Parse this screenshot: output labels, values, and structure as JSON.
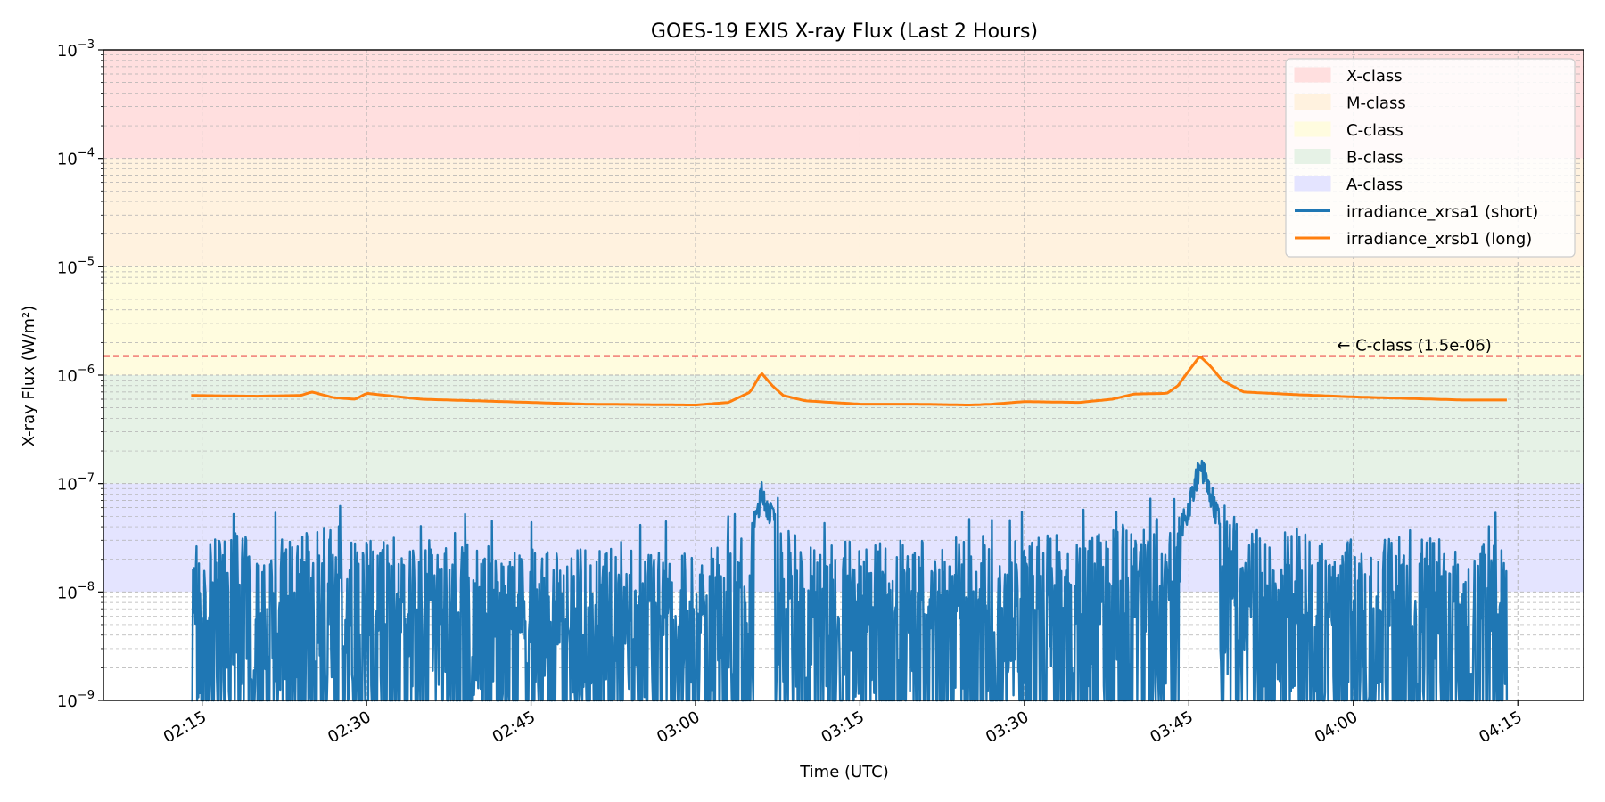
{
  "chart_data": {
    "type": "line",
    "title": "GOES-19 EXIS X-ray Flux (Last 2 Hours)",
    "xlabel": "Time (UTC)",
    "ylabel": "X-ray Flux (W/m²)",
    "y_scale": "log",
    "ylim": [
      1e-09,
      0.001
    ],
    "xlim": [
      "02:06",
      "04:21"
    ],
    "grid": true,
    "legend_position": "top-right",
    "x_ticks": [
      "02:15",
      "02:30",
      "02:45",
      "03:00",
      "03:15",
      "03:30",
      "03:45",
      "04:00",
      "04:15"
    ],
    "y_ticks": [
      {
        "base": "10",
        "exp": "−9",
        "value": 1e-09
      },
      {
        "base": "10",
        "exp": "−8",
        "value": 1e-08
      },
      {
        "base": "10",
        "exp": "−7",
        "value": 1e-07
      },
      {
        "base": "10",
        "exp": "−6",
        "value": 1e-06
      },
      {
        "base": "10",
        "exp": "−5",
        "value": 1e-05
      },
      {
        "base": "10",
        "exp": "−4",
        "value": 0.0001
      },
      {
        "base": "10",
        "exp": "−3",
        "value": 0.001
      }
    ],
    "bands": [
      {
        "name": "X-class",
        "from": 0.0001,
        "to": 0.001,
        "color": "#ffdfdf"
      },
      {
        "name": "M-class",
        "from": 1e-05,
        "to": 0.0001,
        "color": "#fff2df"
      },
      {
        "name": "C-class",
        "from": 1e-06,
        "to": 1e-05,
        "color": "#fffcdf"
      },
      {
        "name": "B-class",
        "from": 1e-07,
        "to": 1e-06,
        "color": "#e6f2e6"
      },
      {
        "name": "A-class",
        "from": 1e-08,
        "to": 1e-07,
        "color": "#e4e4ff"
      }
    ],
    "threshold": {
      "value": 1.5e-06,
      "label": "← C-class (1.5e-06)",
      "color": "#e8202a"
    },
    "series": [
      {
        "name": "irradiance_xrsa1 (short)",
        "color": "#1f77b4",
        "x": [
          "02:14",
          "02:17",
          "02:20",
          "02:23",
          "02:26",
          "02:28",
          "02:30",
          "02:33",
          "02:36",
          "02:40",
          "02:45",
          "02:50",
          "02:55",
          "03:00",
          "03:03",
          "03:05",
          "03:06",
          "03:07",
          "03:08",
          "03:10",
          "03:15",
          "03:20",
          "03:25",
          "03:30",
          "03:35",
          "03:40",
          "03:43",
          "03:45",
          "03:46",
          "03:47",
          "03:48",
          "03:50",
          "03:55",
          "04:00",
          "04:05",
          "04:10",
          "04:14"
        ],
        "values": [
          1.2e-08,
          1.5e-08,
          1.2e-08,
          1.3e-08,
          1.6e-08,
          1.3e-08,
          1.2e-08,
          1.3e-08,
          1.2e-08,
          1.1e-08,
          1e-08,
          1e-08,
          1e-08,
          1e-08,
          1.1e-08,
          3e-08,
          8e-08,
          5e-08,
          2e-08,
          1.2e-08,
          1.2e-08,
          1.2e-08,
          1.3e-08,
          1.3e-08,
          1.4e-08,
          1.6e-08,
          2e-08,
          6e-08,
          1.5e-07,
          8e-08,
          3.5e-08,
          1.6e-08,
          1.4e-08,
          1.3e-08,
          1.3e-08,
          1.2e-08,
          1.2e-08
        ]
      },
      {
        "name": "irradiance_xrsb1 (long)",
        "color": "#ff7f0e",
        "x": [
          "02:14",
          "02:20",
          "02:24",
          "02:25",
          "02:27",
          "02:29",
          "02:30",
          "02:35",
          "02:40",
          "02:45",
          "02:50",
          "03:00",
          "03:03",
          "03:05",
          "03:06",
          "03:07",
          "03:08",
          "03:10",
          "03:15",
          "03:20",
          "03:25",
          "03:27",
          "03:30",
          "03:35",
          "03:38",
          "03:40",
          "03:43",
          "03:44",
          "03:45",
          "03:46",
          "03:47",
          "03:48",
          "03:50",
          "03:55",
          "04:00",
          "04:05",
          "04:10",
          "04:14"
        ],
        "values": [
          6.5e-07,
          6.4e-07,
          6.5e-07,
          7e-07,
          6.2e-07,
          6e-07,
          6.8e-07,
          6e-07,
          5.8e-07,
          5.6e-07,
          5.4e-07,
          5.3e-07,
          5.6e-07,
          7e-07,
          1.05e-06,
          8e-07,
          6.5e-07,
          5.8e-07,
          5.4e-07,
          5.4e-07,
          5.3e-07,
          5.4e-07,
          5.7e-07,
          5.6e-07,
          6e-07,
          6.7e-07,
          6.8e-07,
          8e-07,
          1.1e-06,
          1.5e-06,
          1.2e-06,
          9e-07,
          7e-07,
          6.6e-07,
          6.3e-07,
          6.1e-07,
          5.9e-07,
          5.9e-07
        ]
      }
    ]
  }
}
